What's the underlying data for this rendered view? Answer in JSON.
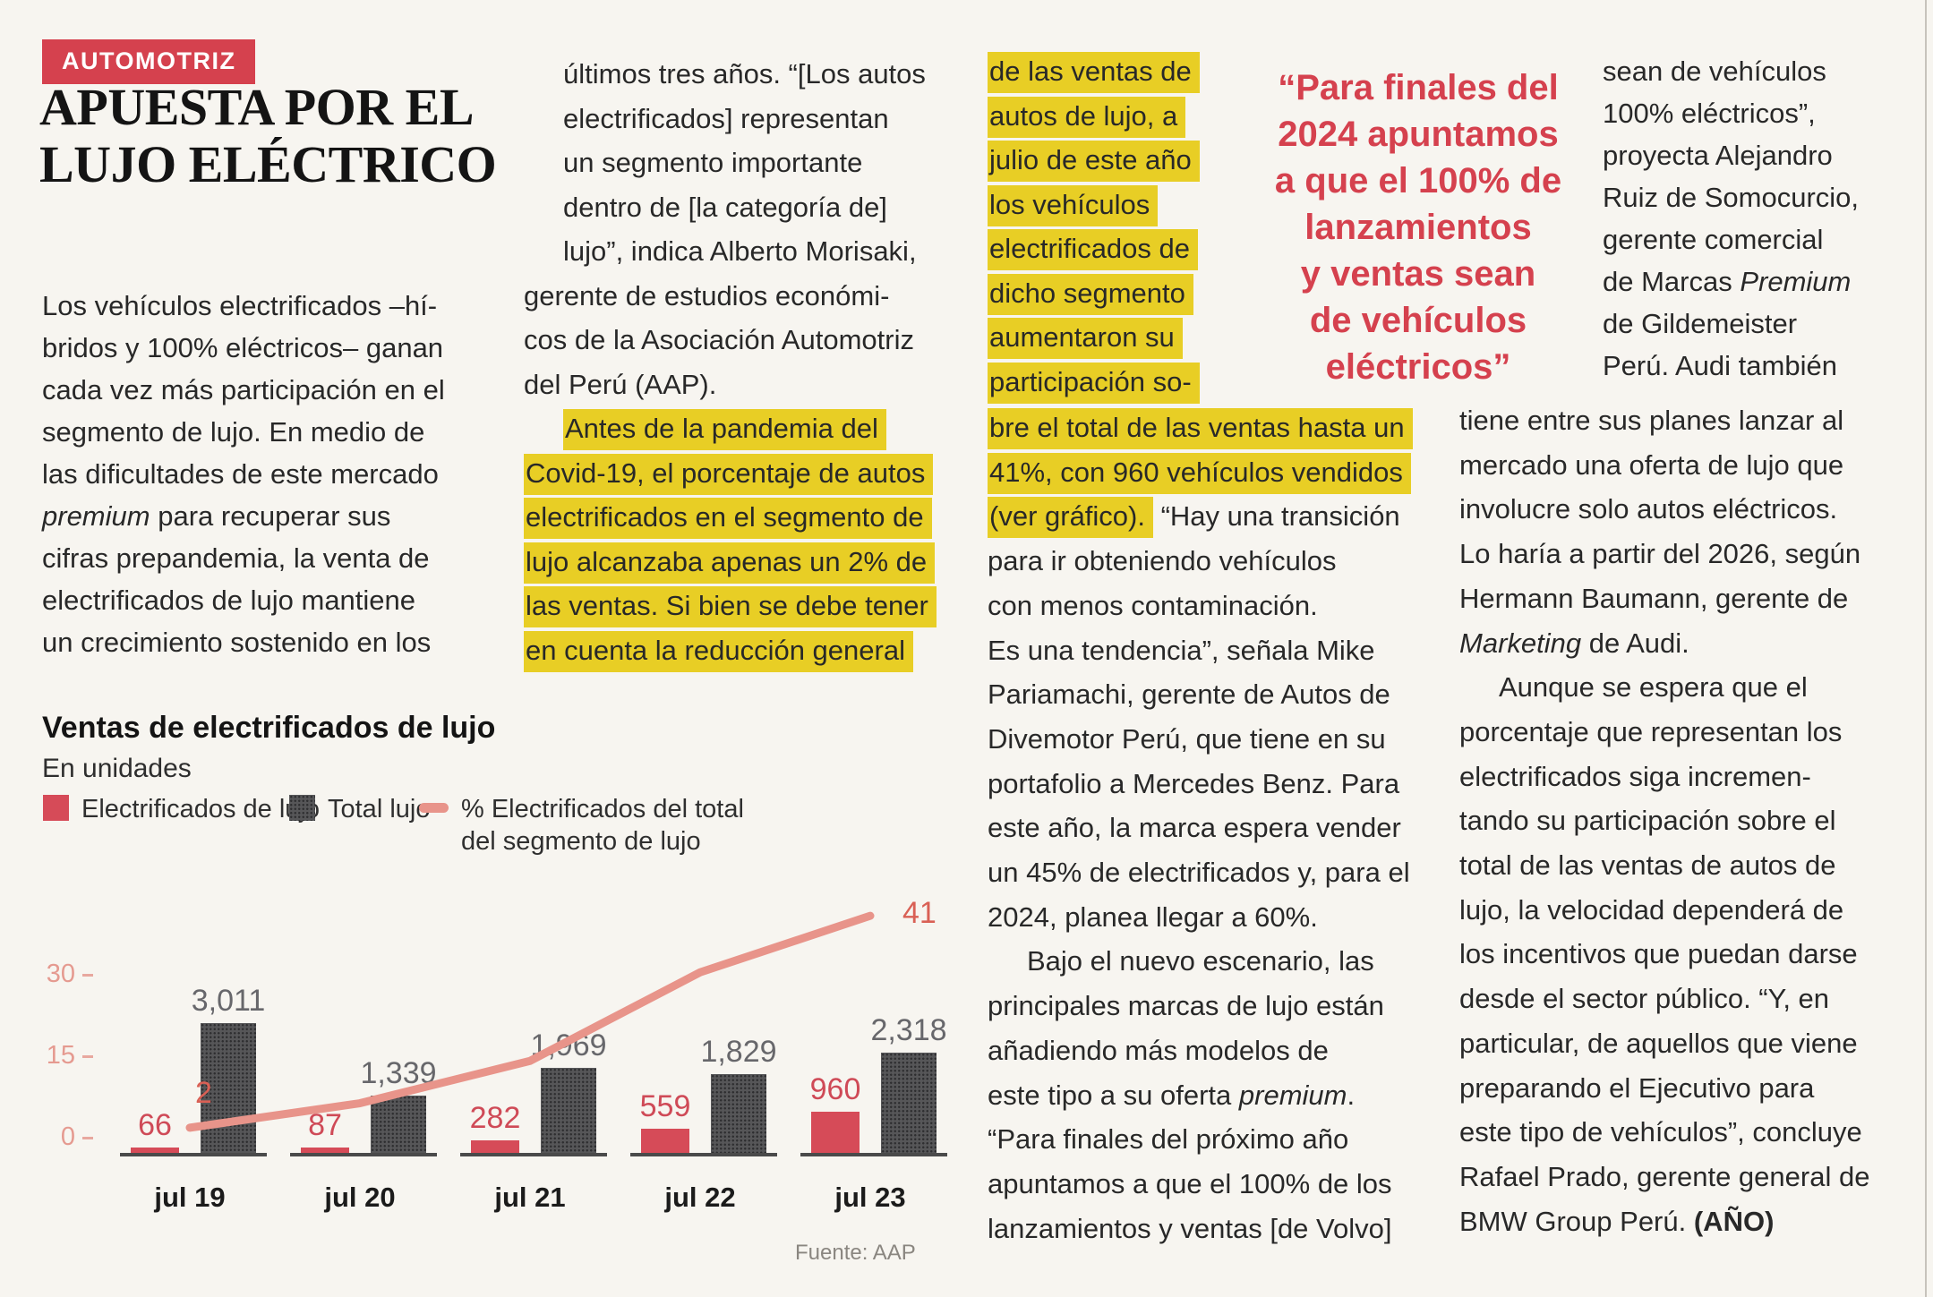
{
  "page": {
    "background": "#f7f5f0"
  },
  "colors": {
    "accent_red": "#d5414e",
    "highlight_yellow": "#e8ce25",
    "bar_red": "#d64b58",
    "bar_dark": "#565658",
    "line_salmon": "#e8948a"
  },
  "kicker": {
    "label": "AUTOMOTRIZ"
  },
  "headline": {
    "line1": "APUESTA POR EL",
    "line2": "LUJO ELÉCTRICO"
  },
  "blocks": {
    "col1_intro": {
      "lines": [
        {
          "s": [
            {
              "t": "Los vehículos electrificados –hí-"
            }
          ]
        },
        {
          "s": [
            {
              "t": "bridos y 100% eléctricos– ganan"
            }
          ]
        },
        {
          "s": [
            {
              "t": "cada vez más participación en el"
            }
          ]
        },
        {
          "s": [
            {
              "t": "segmento de lujo. En medio de"
            }
          ]
        },
        {
          "s": [
            {
              "t": "las dificultades de este mercado"
            }
          ]
        },
        {
          "s": [
            {
              "t": "premium",
              "it": true
            },
            {
              "t": " para recuperar sus"
            }
          ]
        },
        {
          "s": [
            {
              "t": "cifras prepandemia, la venta de"
            }
          ]
        },
        {
          "s": [
            {
              "t": "electrificados de lujo mantiene"
            }
          ]
        },
        {
          "s": [
            {
              "t": "un crecimiento sostenido en los"
            }
          ]
        }
      ]
    },
    "col2": {
      "lines": [
        {
          "ind": true,
          "s": [
            {
              "t": "últimos tres años. “[Los autos"
            }
          ]
        },
        {
          "ind": true,
          "s": [
            {
              "t": "electrificados] representan"
            }
          ]
        },
        {
          "ind": true,
          "s": [
            {
              "t": "un segmento importante"
            }
          ]
        },
        {
          "ind": true,
          "s": [
            {
              "t": "dentro de [la categoría de]"
            }
          ]
        },
        {
          "ind": true,
          "s": [
            {
              "t": "lujo”, indica Alberto Morisaki,"
            }
          ]
        },
        {
          "s": [
            {
              "t": "gerente de estudios económi-"
            }
          ]
        },
        {
          "s": [
            {
              "t": "cos de la Asociación Automotriz"
            }
          ]
        },
        {
          "s": [
            {
              "t": "del Perú (AAP)."
            }
          ]
        },
        {
          "ind": true,
          "h": true,
          "s": [
            {
              "t": "Antes de la pandemia del"
            }
          ]
        },
        {
          "h": true,
          "s": [
            {
              "t": "Covid-19, el porcentaje de autos"
            }
          ]
        },
        {
          "h": true,
          "s": [
            {
              "t": "electrificados en el segmento de"
            }
          ]
        },
        {
          "h": true,
          "s": [
            {
              "t": "lujo alcanzaba apenas un 2% de"
            }
          ]
        },
        {
          "h": true,
          "s": [
            {
              "t": "las ventas. Si bien se debe tener"
            }
          ]
        },
        {
          "h": true,
          "s": [
            {
              "t": "en cuenta la reducción general"
            }
          ]
        }
      ]
    },
    "col3_top": {
      "lines": [
        {
          "h": true,
          "s": [
            {
              "t": "de las ventas de"
            }
          ]
        },
        {
          "h": true,
          "s": [
            {
              "t": "autos de lujo, a"
            }
          ]
        },
        {
          "h": true,
          "s": [
            {
              "t": "julio de este año"
            }
          ]
        },
        {
          "h": true,
          "s": [
            {
              "t": "los vehículos"
            }
          ]
        },
        {
          "h": true,
          "s": [
            {
              "t": "electrificados de"
            }
          ]
        },
        {
          "h": true,
          "s": [
            {
              "t": "dicho segmento"
            }
          ]
        },
        {
          "h": true,
          "s": [
            {
              "t": "aumentaron su"
            }
          ]
        },
        {
          "h": true,
          "s": [
            {
              "t": "participación so-"
            }
          ]
        }
      ]
    },
    "col3_main": {
      "lines": [
        {
          "h": true,
          "s": [
            {
              "t": "bre el total de las ventas hasta un"
            }
          ]
        },
        {
          "h": true,
          "s": [
            {
              "t": "41%, con 960 vehículos vendidos"
            }
          ]
        },
        {
          "s": [
            {
              "t": "(ver gráfico).",
              "h": true
            },
            {
              "t": " “Hay una transición"
            }
          ]
        },
        {
          "s": [
            {
              "t": "para ir obteniendo vehículos"
            }
          ]
        },
        {
          "s": [
            {
              "t": "con menos contaminación."
            }
          ]
        },
        {
          "s": [
            {
              "t": "Es una tendencia”, señala Mike"
            }
          ]
        },
        {
          "s": [
            {
              "t": "Pariamachi, gerente de Autos de"
            }
          ]
        },
        {
          "s": [
            {
              "t": "Divemotor Perú, que tiene en su"
            }
          ]
        },
        {
          "s": [
            {
              "t": "portafolio a Mercedes Benz. Para"
            }
          ]
        },
        {
          "s": [
            {
              "t": "este año, la marca espera vender"
            }
          ]
        },
        {
          "s": [
            {
              "t": "un 45% de electrificados y, para el"
            }
          ]
        },
        {
          "s": [
            {
              "t": "2024, planea llegar a 60%."
            }
          ]
        },
        {
          "ind": true,
          "s": [
            {
              "t": "Bajo el nuevo escenario, las"
            }
          ]
        },
        {
          "s": [
            {
              "t": "principales marcas de lujo están"
            }
          ]
        },
        {
          "s": [
            {
              "t": "añadiendo más modelos de"
            }
          ]
        },
        {
          "s": [
            {
              "t": "este tipo a su oferta "
            },
            {
              "t": "premium",
              "it": true
            },
            {
              "t": "."
            }
          ]
        },
        {
          "s": [
            {
              "t": "“Para finales del próximo año"
            }
          ]
        },
        {
          "s": [
            {
              "t": "apuntamos a que el 100% de los"
            }
          ]
        },
        {
          "s": [
            {
              "t": "lanzamientos y ventas [de Volvo]"
            }
          ]
        }
      ]
    },
    "pull_quote": {
      "lines": [
        {
          "s": [
            {
              "t": "“Para finales del"
            }
          ]
        },
        {
          "s": [
            {
              "t": "2024 apuntamos"
            }
          ]
        },
        {
          "s": [
            {
              "t": "a que el 100% de"
            }
          ]
        },
        {
          "s": [
            {
              "t": "lanzamientos"
            }
          ]
        },
        {
          "s": [
            {
              "t": "y ventas sean"
            }
          ]
        },
        {
          "s": [
            {
              "t": "de vehículos"
            }
          ]
        },
        {
          "s": [
            {
              "t": "eléctricos”"
            }
          ]
        }
      ]
    },
    "col5_top": {
      "lines": [
        {
          "s": [
            {
              "t": "sean de vehículos"
            }
          ]
        },
        {
          "s": [
            {
              "t": "100% eléctricos”,"
            }
          ]
        },
        {
          "s": [
            {
              "t": "proyecta Alejandro"
            }
          ]
        },
        {
          "s": [
            {
              "t": "Ruiz de Somocurcio,"
            }
          ]
        },
        {
          "s": [
            {
              "t": "gerente comercial"
            }
          ]
        },
        {
          "s": [
            {
              "t": "de Marcas "
            },
            {
              "t": "Premium",
              "it": true
            }
          ]
        },
        {
          "s": [
            {
              "t": "de Gildemeister"
            }
          ]
        },
        {
          "s": [
            {
              "t": "Perú. Audi también"
            }
          ]
        }
      ]
    },
    "col5_main": {
      "lines": [
        {
          "s": [
            {
              "t": "tiene entre sus planes lanzar al"
            }
          ]
        },
        {
          "s": [
            {
              "t": "mercado una oferta de lujo que"
            }
          ]
        },
        {
          "s": [
            {
              "t": "involucre solo autos eléctricos."
            }
          ]
        },
        {
          "s": [
            {
              "t": "Lo haría a partir del 2026, según"
            }
          ]
        },
        {
          "s": [
            {
              "t": "Hermann Baumann, gerente de"
            }
          ]
        },
        {
          "s": [
            {
              "t": "Marketing",
              "it": true
            },
            {
              "t": " de Audi."
            }
          ]
        },
        {
          "ind": true,
          "s": [
            {
              "t": "Aunque se espera que el"
            }
          ]
        },
        {
          "s": [
            {
              "t": "porcentaje que representan los"
            }
          ]
        },
        {
          "s": [
            {
              "t": "electrificados siga incremen-"
            }
          ]
        },
        {
          "s": [
            {
              "t": "tando su participación sobre el"
            }
          ]
        },
        {
          "s": [
            {
              "t": "total de las ventas de autos de"
            }
          ]
        },
        {
          "s": [
            {
              "t": "lujo, la velocidad dependerá de"
            }
          ]
        },
        {
          "s": [
            {
              "t": "los incentivos que puedan darse"
            }
          ]
        },
        {
          "s": [
            {
              "t": "desde el sector público. “Y, en"
            }
          ]
        },
        {
          "s": [
            {
              "t": "particular, de aquellos que viene"
            }
          ]
        },
        {
          "s": [
            {
              "t": "preparando el Ejecutivo para"
            }
          ]
        },
        {
          "s": [
            {
              "t": "este tipo de vehículos”, concluye"
            }
          ]
        },
        {
          "s": [
            {
              "t": "Rafael Prado, gerente general de"
            }
          ]
        },
        {
          "s": [
            {
              "t": "BMW Group Perú. "
            },
            {
              "t": "(AÑO)",
              "b": true
            }
          ]
        }
      ]
    }
  },
  "chart_data": {
    "type": "bar+line",
    "title": "Ventas de electrificados de lujo",
    "subtitle": "En unidades",
    "categories": [
      "jul 19",
      "jul 20",
      "jul 21",
      "jul 22",
      "jul 23"
    ],
    "series": [
      {
        "name": "Electrificados de lujo",
        "type": "bar",
        "color": "#d64b58",
        "values": [
          66,
          87,
          282,
          559,
          960
        ],
        "labels": [
          "66",
          "87",
          "282",
          "559",
          "960"
        ]
      },
      {
        "name": "Total lujo",
        "type": "bar",
        "color": "#565658",
        "values": [
          3011,
          1339,
          1969,
          1829,
          2318
        ],
        "labels": [
          "3,011",
          "1,339",
          "1,969",
          "1,829",
          "2,318"
        ]
      },
      {
        "name": "% Electrificados del total del segmento de lujo",
        "type": "line",
        "color": "#e8948a",
        "values": [
          2,
          6.5,
          14.3,
          30.6,
          41
        ],
        "point_labels": [
          "2",
          null,
          null,
          null,
          "41"
        ]
      }
    ],
    "legend": [
      {
        "swatch": "red",
        "label_lines": [
          "Electrificados de lujo"
        ]
      },
      {
        "swatch": "dark",
        "label_lines": [
          "Total lujo"
        ]
      },
      {
        "swatch": "line",
        "label_lines": [
          "% Electrificados del total",
          "del segmento de lujo"
        ]
      }
    ],
    "pct_axis": {
      "ticks": [
        30,
        15,
        0
      ],
      "range": [
        0,
        45
      ]
    },
    "grid": false,
    "source": "Fuente: AAP"
  }
}
